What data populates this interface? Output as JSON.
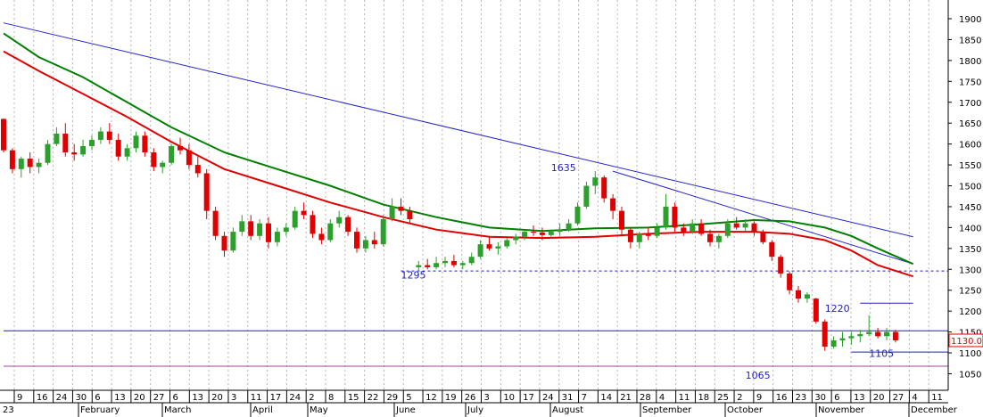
{
  "chart_data": {
    "type": "candlestick",
    "colors": {
      "up": "#2ca02c",
      "down": "#e00000",
      "ma_green": "#008000",
      "ma_red": "#e00000",
      "trend": "#2323c8",
      "hline": "#1e1ec8",
      "price_box": "#e00000",
      "grid": "#b4b4b4"
    },
    "y_axis": {
      "ticks": [
        1900,
        1850,
        1800,
        1750,
        1700,
        1650,
        1600,
        1550,
        1500,
        1450,
        1400,
        1350,
        1300,
        1250,
        1200,
        1150,
        1100,
        1050
      ],
      "ylim": [
        1025,
        1925
      ]
    },
    "last_price": "1130.000",
    "x_axis": {
      "year": "23",
      "day_ticks": [
        "9",
        "16",
        "24",
        "30",
        "6",
        "13",
        "20",
        "27",
        "6",
        "13",
        "20",
        "3",
        "11",
        "17",
        "24",
        "2",
        "8",
        "15",
        "22",
        "29",
        "5",
        "12",
        "19",
        "26",
        "3",
        "10",
        "17",
        "24",
        "31",
        "7",
        "14",
        "21",
        "28",
        "4",
        "11",
        "18",
        "25",
        "2",
        "9",
        "16",
        "23",
        "30",
        "6",
        "13",
        "20",
        "27",
        "4",
        "11"
      ],
      "months": [
        "February",
        "March",
        "April",
        "May",
        "June",
        "July",
        "August",
        "September",
        "October",
        "November",
        "December"
      ]
    },
    "annotations": [
      {
        "text": "1635",
        "x": 62,
        "y": 1535
      },
      {
        "text": "1295",
        "x": 45,
        "y": 1278
      },
      {
        "text": "1220",
        "x": 93,
        "y": 1198
      },
      {
        "text": "1105",
        "x": 98,
        "y": 1090
      },
      {
        "text": "1065",
        "x": 84,
        "y": 1038
      }
    ],
    "horizontal_lines": [
      {
        "y": 1153,
        "style": "solid",
        "x_from": 0,
        "x_to": 110
      },
      {
        "y": 1068,
        "style": "solid-purple",
        "x_from": 0,
        "x_to": 110
      },
      {
        "y": 1296,
        "style": "dashed",
        "x_from": 45,
        "x_to": 110
      },
      {
        "y": 1219,
        "style": "solid",
        "x_from": 97,
        "x_to": 103
      },
      {
        "y": 1102,
        "style": "solid",
        "x_from": 96,
        "x_to": 110
      }
    ],
    "trend_lines": [
      {
        "x0": 0,
        "y0": 1890,
        "x1": 103,
        "y1": 1378
      },
      {
        "x0": 69,
        "y0": 1535,
        "x1": 103,
        "y1": 1313
      }
    ],
    "ma_green": [
      [
        0,
        1865
      ],
      [
        4,
        1808
      ],
      [
        9,
        1760
      ],
      [
        14,
        1700
      ],
      [
        19,
        1640
      ],
      [
        25,
        1580
      ],
      [
        31,
        1540
      ],
      [
        37,
        1500
      ],
      [
        43,
        1455
      ],
      [
        49,
        1425
      ],
      [
        55,
        1400
      ],
      [
        61,
        1392
      ],
      [
        67,
        1398
      ],
      [
        73,
        1400
      ],
      [
        79,
        1408
      ],
      [
        85,
        1418
      ],
      [
        89,
        1415
      ],
      [
        93,
        1400
      ],
      [
        96,
        1380
      ],
      [
        99,
        1350
      ],
      [
        103,
        1313
      ]
    ],
    "ma_red": [
      [
        0,
        1822
      ],
      [
        4,
        1775
      ],
      [
        9,
        1720
      ],
      [
        14,
        1665
      ],
      [
        19,
        1605
      ],
      [
        25,
        1540
      ],
      [
        31,
        1500
      ],
      [
        37,
        1460
      ],
      [
        43,
        1425
      ],
      [
        49,
        1395
      ],
      [
        55,
        1378
      ],
      [
        61,
        1375
      ],
      [
        67,
        1378
      ],
      [
        73,
        1385
      ],
      [
        79,
        1390
      ],
      [
        85,
        1390
      ],
      [
        89,
        1385
      ],
      [
        93,
        1370
      ],
      [
        96,
        1345
      ],
      [
        99,
        1310
      ],
      [
        103,
        1283
      ]
    ],
    "candles": [
      [
        1660,
        1661,
        1580,
        1585
      ],
      [
        1585,
        1590,
        1530,
        1540
      ],
      [
        1540,
        1570,
        1520,
        1565
      ],
      [
        1565,
        1580,
        1530,
        1545
      ],
      [
        1545,
        1565,
        1530,
        1555
      ],
      [
        1555,
        1610,
        1550,
        1600
      ],
      [
        1600,
        1640,
        1595,
        1625
      ],
      [
        1625,
        1650,
        1570,
        1580
      ],
      [
        1580,
        1600,
        1560,
        1575
      ],
      [
        1575,
        1610,
        1570,
        1595
      ],
      [
        1595,
        1620,
        1585,
        1610
      ],
      [
        1610,
        1640,
        1600,
        1630
      ],
      [
        1630,
        1650,
        1600,
        1610
      ],
      [
        1610,
        1625,
        1560,
        1570
      ],
      [
        1570,
        1600,
        1560,
        1590
      ],
      [
        1590,
        1630,
        1580,
        1620
      ],
      [
        1620,
        1630,
        1570,
        1580
      ],
      [
        1580,
        1590,
        1535,
        1545
      ],
      [
        1545,
        1560,
        1530,
        1555
      ],
      [
        1555,
        1600,
        1550,
        1595
      ],
      [
        1595,
        1615,
        1575,
        1585
      ],
      [
        1585,
        1600,
        1540,
        1550
      ],
      [
        1550,
        1570,
        1520,
        1530
      ],
      [
        1530,
        1540,
        1420,
        1440
      ],
      [
        1440,
        1450,
        1370,
        1380
      ],
      [
        1380,
        1390,
        1330,
        1345
      ],
      [
        1345,
        1400,
        1340,
        1390
      ],
      [
        1390,
        1430,
        1380,
        1415
      ],
      [
        1415,
        1430,
        1370,
        1380
      ],
      [
        1380,
        1420,
        1370,
        1410
      ],
      [
        1410,
        1425,
        1350,
        1365
      ],
      [
        1365,
        1400,
        1355,
        1390
      ],
      [
        1390,
        1410,
        1380,
        1400
      ],
      [
        1400,
        1450,
        1395,
        1440
      ],
      [
        1440,
        1460,
        1420,
        1430
      ],
      [
        1430,
        1440,
        1375,
        1385
      ],
      [
        1385,
        1400,
        1360,
        1370
      ],
      [
        1370,
        1420,
        1365,
        1410
      ],
      [
        1410,
        1440,
        1400,
        1425
      ],
      [
        1425,
        1430,
        1380,
        1390
      ],
      [
        1390,
        1400,
        1340,
        1350
      ],
      [
        1350,
        1380,
        1340,
        1370
      ],
      [
        1370,
        1390,
        1350,
        1360
      ],
      [
        1360,
        1430,
        1355,
        1420
      ],
      [
        1420,
        1470,
        1415,
        1450
      ],
      [
        1450,
        1470,
        1430,
        1440
      ],
      [
        1440,
        1450,
        1410,
        1420
      ],
      [
        1305,
        1320,
        1295,
        1310
      ],
      [
        1310,
        1325,
        1300,
        1305
      ],
      [
        1305,
        1330,
        1300,
        1315
      ],
      [
        1315,
        1330,
        1305,
        1320
      ],
      [
        1320,
        1335,
        1305,
        1310
      ],
      [
        1310,
        1320,
        1300,
        1315
      ],
      [
        1315,
        1340,
        1310,
        1330
      ],
      [
        1330,
        1370,
        1325,
        1360
      ],
      [
        1360,
        1380,
        1345,
        1350
      ],
      [
        1350,
        1365,
        1335,
        1355
      ],
      [
        1355,
        1375,
        1350,
        1370
      ],
      [
        1370,
        1385,
        1360,
        1378
      ],
      [
        1378,
        1395,
        1370,
        1390
      ],
      [
        1390,
        1405,
        1380,
        1388
      ],
      [
        1388,
        1400,
        1370,
        1382
      ],
      [
        1382,
        1395,
        1375,
        1390
      ],
      [
        1390,
        1410,
        1380,
        1395
      ],
      [
        1395,
        1420,
        1390,
        1410
      ],
      [
        1410,
        1460,
        1405,
        1450
      ],
      [
        1450,
        1510,
        1445,
        1500
      ],
      [
        1500,
        1535,
        1480,
        1520
      ],
      [
        1520,
        1525,
        1460,
        1470
      ],
      [
        1470,
        1480,
        1420,
        1440
      ],
      [
        1440,
        1450,
        1380,
        1395
      ],
      [
        1395,
        1400,
        1350,
        1365
      ],
      [
        1365,
        1390,
        1350,
        1385
      ],
      [
        1385,
        1400,
        1370,
        1380
      ],
      [
        1380,
        1410,
        1375,
        1400
      ],
      [
        1400,
        1480,
        1395,
        1450
      ],
      [
        1450,
        1460,
        1390,
        1400
      ],
      [
        1400,
        1410,
        1380,
        1390
      ],
      [
        1390,
        1420,
        1385,
        1410
      ],
      [
        1410,
        1420,
        1380,
        1385
      ],
      [
        1385,
        1395,
        1355,
        1365
      ],
      [
        1365,
        1385,
        1350,
        1380
      ],
      [
        1380,
        1420,
        1375,
        1410
      ],
      [
        1410,
        1425,
        1395,
        1400
      ],
      [
        1400,
        1420,
        1390,
        1410
      ],
      [
        1410,
        1415,
        1380,
        1390
      ],
      [
        1390,
        1395,
        1360,
        1365
      ],
      [
        1365,
        1370,
        1320,
        1330
      ],
      [
        1330,
        1335,
        1280,
        1290
      ],
      [
        1290,
        1295,
        1240,
        1250
      ],
      [
        1250,
        1260,
        1220,
        1230
      ],
      [
        1230,
        1245,
        1220,
        1240
      ],
      [
        1230,
        1232,
        1170,
        1175
      ],
      [
        1175,
        1180,
        1105,
        1115
      ],
      [
        1115,
        1140,
        1110,
        1130
      ],
      [
        1130,
        1150,
        1115,
        1135
      ],
      [
        1135,
        1150,
        1120,
        1140
      ],
      [
        1140,
        1155,
        1125,
        1145
      ],
      [
        1145,
        1190,
        1140,
        1150
      ],
      [
        1150,
        1160,
        1135,
        1140
      ],
      [
        1140,
        1160,
        1130,
        1150
      ],
      [
        1150,
        1155,
        1125,
        1130
      ]
    ]
  }
}
